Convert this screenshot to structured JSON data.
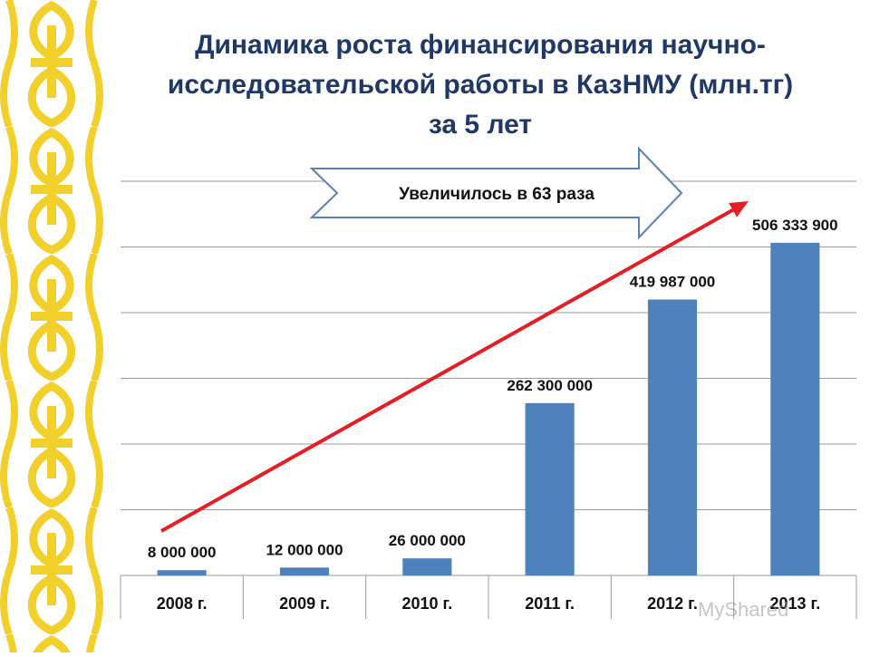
{
  "title": {
    "line1": "Динамика роста финансирования научно-",
    "line2": "исследовательской работы в КазНМУ (млн.тг)",
    "line3": "за 5 лет"
  },
  "callout": {
    "text": "Увеличилось в 63 раза"
  },
  "watermark": "MyShared",
  "colors": {
    "bar": "#4f81bd",
    "trend": "#e31e24",
    "ornament": "#f2d02b",
    "title": "#1f3864",
    "callout_border": "#5b7fb5"
  },
  "chart_data": {
    "type": "bar",
    "categories": [
      "2008 г.",
      "2009 г.",
      "2010 г.",
      "2011 г.",
      "2012 г.",
      "2013 г."
    ],
    "values": [
      8000000,
      12000000,
      26000000,
      262300000,
      419987000,
      506333900
    ],
    "value_labels": [
      "8 000 000",
      "12 000 000",
      "26 000 000",
      "262 300 000",
      "419 987 000",
      "506 333 900"
    ],
    "ylim": [
      0,
      600000000
    ],
    "y_gridline_step": 100000000,
    "y_tick_labels_shown": false,
    "grid": true,
    "legend": "none",
    "annotation": "Увеличилось в 63 раза"
  }
}
